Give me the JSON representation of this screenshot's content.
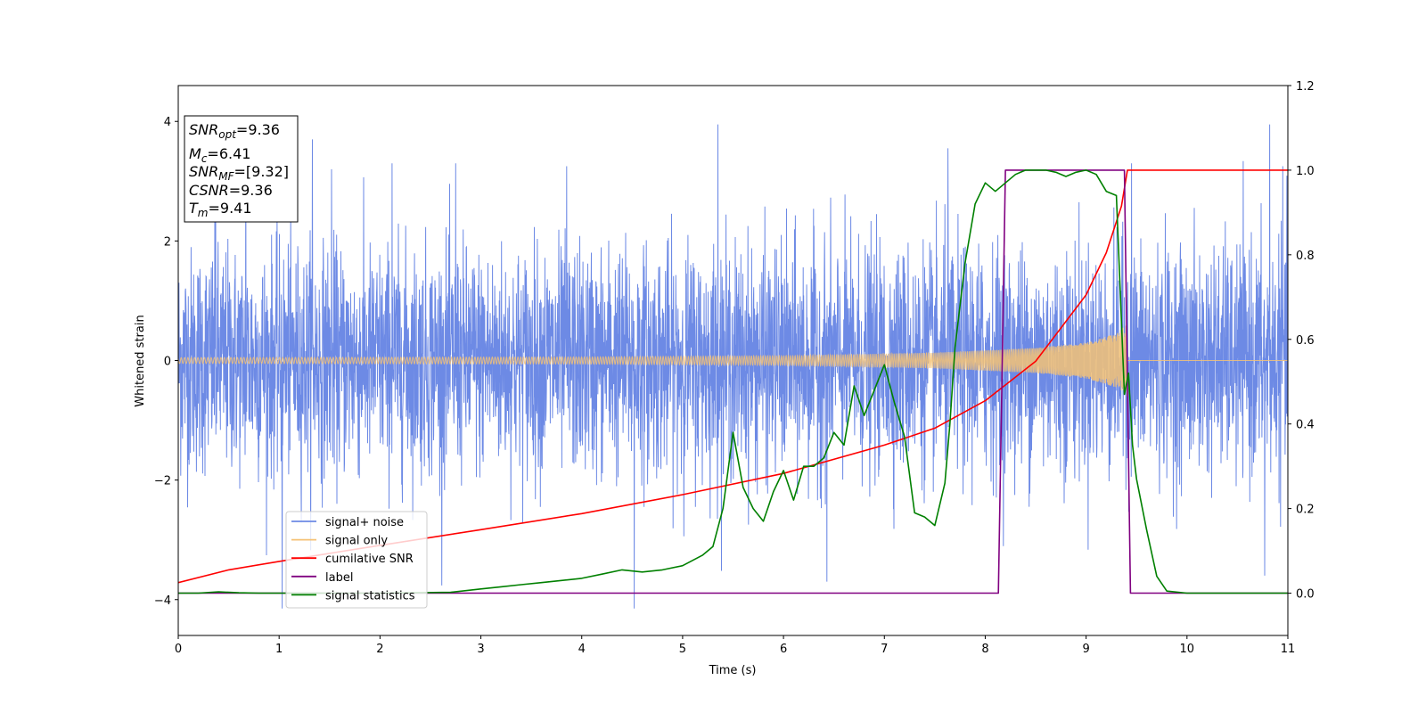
{
  "chart_data": {
    "type": "line",
    "xlabel": "Time (s)",
    "ylabel": "Whitened strain",
    "xlim": [
      0,
      11
    ],
    "ylim": [
      -4.6,
      4.6
    ],
    "ylim_right": [
      -0.1,
      1.2
    ],
    "x_ticks": [
      "0",
      "1",
      "2",
      "3",
      "4",
      "5",
      "6",
      "7",
      "8",
      "9",
      "10",
      "11"
    ],
    "y_ticks": [
      "−4",
      "−2",
      "0",
      "2",
      "4"
    ],
    "y_ticks_right": [
      "0.0",
      "0.2",
      "0.4",
      "0.6",
      "0.8",
      "1.0",
      "1.2"
    ],
    "legend_position": "lower-left",
    "info_box": {
      "lines": [
        {
          "sym": "SNR",
          "sub": "opt",
          "value": "=9.36"
        },
        {
          "sym": "M",
          "sub": "c",
          "value": "=6.41"
        },
        {
          "sym": "SNR",
          "sub": "MF",
          "value": "=[9.32]"
        },
        {
          "sym": "CSNR",
          "sub": "",
          "value": "=9.36"
        },
        {
          "sym": "T",
          "sub": "m",
          "value": "=9.41"
        }
      ]
    },
    "series": [
      {
        "name": "signal+ noise",
        "color": "#6d8ae5",
        "axis": "left",
        "kind": "noise",
        "typical_amplitude": 1.3,
        "peaks": [
          [
            0.37,
            4.1
          ],
          [
            0.67,
            3.7
          ],
          [
            1.03,
            -4.15
          ],
          [
            1.33,
            3.7
          ],
          [
            1.52,
            3.2
          ],
          [
            2.12,
            3.3
          ],
          [
            2.75,
            3.3
          ],
          [
            3.85,
            3.25
          ],
          [
            4.52,
            -4.15
          ],
          [
            5.35,
            3.95
          ],
          [
            6.43,
            -3.7
          ],
          [
            7.63,
            3.55
          ],
          [
            9.45,
            3.3
          ],
          [
            10.77,
            -3.6
          ],
          [
            10.82,
            3.95
          ],
          [
            10.95,
            3.25
          ]
        ]
      },
      {
        "name": "signal only",
        "color": "#f5c276",
        "axis": "left",
        "kind": "chirp",
        "amplitude_envelope": [
          [
            0.0,
            0.05
          ],
          [
            4.0,
            0.06
          ],
          [
            6.0,
            0.08
          ],
          [
            7.5,
            0.13
          ],
          [
            8.5,
            0.21
          ],
          [
            9.0,
            0.3
          ],
          [
            9.3,
            0.45
          ],
          [
            9.4,
            0.6
          ]
        ],
        "merger_time": 9.41
      },
      {
        "name": "cumilative SNR",
        "color": "#ff0000",
        "axis": "right",
        "x": [
          0.0,
          0.5,
          1.0,
          2.0,
          3.0,
          4.0,
          5.0,
          6.0,
          7.0,
          7.5,
          8.0,
          8.5,
          9.0,
          9.2,
          9.35,
          9.41,
          9.42,
          11.0
        ],
        "y": [
          0.025,
          0.055,
          0.075,
          0.113,
          0.15,
          0.188,
          0.233,
          0.283,
          0.35,
          0.39,
          0.455,
          0.548,
          0.705,
          0.805,
          0.915,
          1.0,
          1.0,
          1.0
        ]
      },
      {
        "name": "label",
        "color": "#800080",
        "axis": "right",
        "x": [
          0.0,
          8.13,
          8.2,
          9.38,
          9.44,
          11.0
        ],
        "y": [
          0.0,
          0.0,
          1.0,
          1.0,
          0.0,
          0.0
        ]
      },
      {
        "name": "signal statistics",
        "color": "#008000",
        "axis": "right",
        "x": [
          0.0,
          0.2,
          0.4,
          0.6,
          0.8,
          1.0,
          2.0,
          2.7,
          3.0,
          3.2,
          3.4,
          3.6,
          3.8,
          4.0,
          4.2,
          4.4,
          4.6,
          4.8,
          5.0,
          5.2,
          5.3,
          5.4,
          5.5,
          5.6,
          5.7,
          5.8,
          5.9,
          6.0,
          6.1,
          6.2,
          6.3,
          6.4,
          6.5,
          6.6,
          6.7,
          6.8,
          6.9,
          7.0,
          7.1,
          7.2,
          7.3,
          7.4,
          7.5,
          7.6,
          7.65,
          7.7,
          7.8,
          7.9,
          8.0,
          8.1,
          8.2,
          8.3,
          8.4,
          8.5,
          8.6,
          8.7,
          8.8,
          8.9,
          9.0,
          9.1,
          9.2,
          9.3,
          9.38,
          9.42,
          9.46,
          9.5,
          9.6,
          9.7,
          9.8,
          10.0,
          11.0
        ],
        "y": [
          0.0,
          0.0,
          0.003,
          0.001,
          0.0,
          0.0,
          0.0,
          0.002,
          0.01,
          0.015,
          0.02,
          0.025,
          0.03,
          0.035,
          0.045,
          0.055,
          0.05,
          0.055,
          0.065,
          0.09,
          0.11,
          0.2,
          0.38,
          0.25,
          0.2,
          0.17,
          0.24,
          0.29,
          0.22,
          0.3,
          0.3,
          0.32,
          0.38,
          0.35,
          0.49,
          0.42,
          0.48,
          0.54,
          0.45,
          0.37,
          0.19,
          0.18,
          0.16,
          0.26,
          0.4,
          0.58,
          0.78,
          0.92,
          0.97,
          0.95,
          0.97,
          0.99,
          1.0,
          1.0,
          1.0,
          0.995,
          0.985,
          0.995,
          1.0,
          0.99,
          0.95,
          0.94,
          0.47,
          0.52,
          0.35,
          0.27,
          0.15,
          0.04,
          0.005,
          0.0,
          0.0
        ]
      }
    ]
  }
}
